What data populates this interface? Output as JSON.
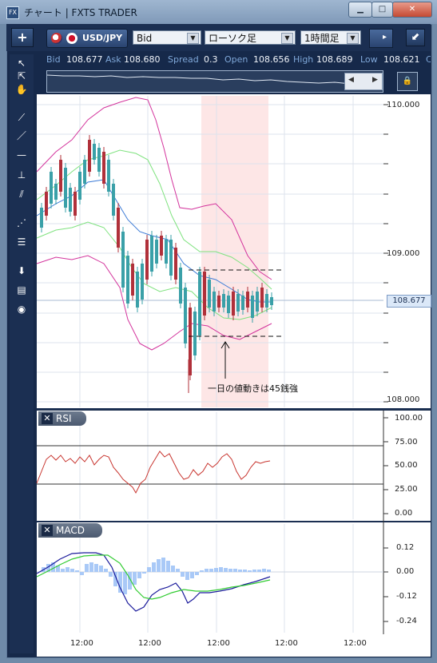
{
  "window": {
    "title": "チャート | FXTS TRADER",
    "app_icon": "FX",
    "controls": [
      "minimize-icon",
      "maximize-icon",
      "close-icon"
    ]
  },
  "toolbar": {
    "add_label": "+",
    "pair": "USD/JPY",
    "price_type": "Bid",
    "chart_type": "ローソク足",
    "period": "1時間足"
  },
  "price_info": {
    "bid_label": "Bid",
    "bid": "108.677",
    "ask_label": "Ask",
    "ask": "108.680",
    "spread_label": "Spread",
    "spread": "0.3",
    "open_label": "Open",
    "open": "108.656",
    "high_label": "High",
    "high": "108.689",
    "low_label": "Low",
    "low": "108.621",
    "close_label": "C"
  },
  "price_axis": [
    "110.000",
    "109.000",
    "108.000"
  ],
  "current_price": "108.677",
  "annotation": "一日の値動きは45銭強",
  "rsi": {
    "label": "RSI",
    "ticks": [
      "100.00",
      "75.00",
      "50.00",
      "25.00",
      "0.00"
    ]
  },
  "macd": {
    "label": "MACD",
    "ticks": [
      "0.12",
      "0.00",
      "-0.12",
      "-0.24"
    ]
  },
  "time_axis": [
    "12:00",
    "12:00",
    "12:00",
    "12:00",
    "12:00"
  ],
  "colors": {
    "bb_outer": "#d3339c",
    "bb_inner": "#7fe27f",
    "ma": "#3c7bd6",
    "candle_up": "#3aa0a8",
    "candle_down": "#b0303a",
    "rsi": "#c8352f",
    "macd_line": "#1c1c9c",
    "signal_line": "#33cc33",
    "histogram": "#a9c9f7",
    "highlight": "#fde6e6"
  }
}
